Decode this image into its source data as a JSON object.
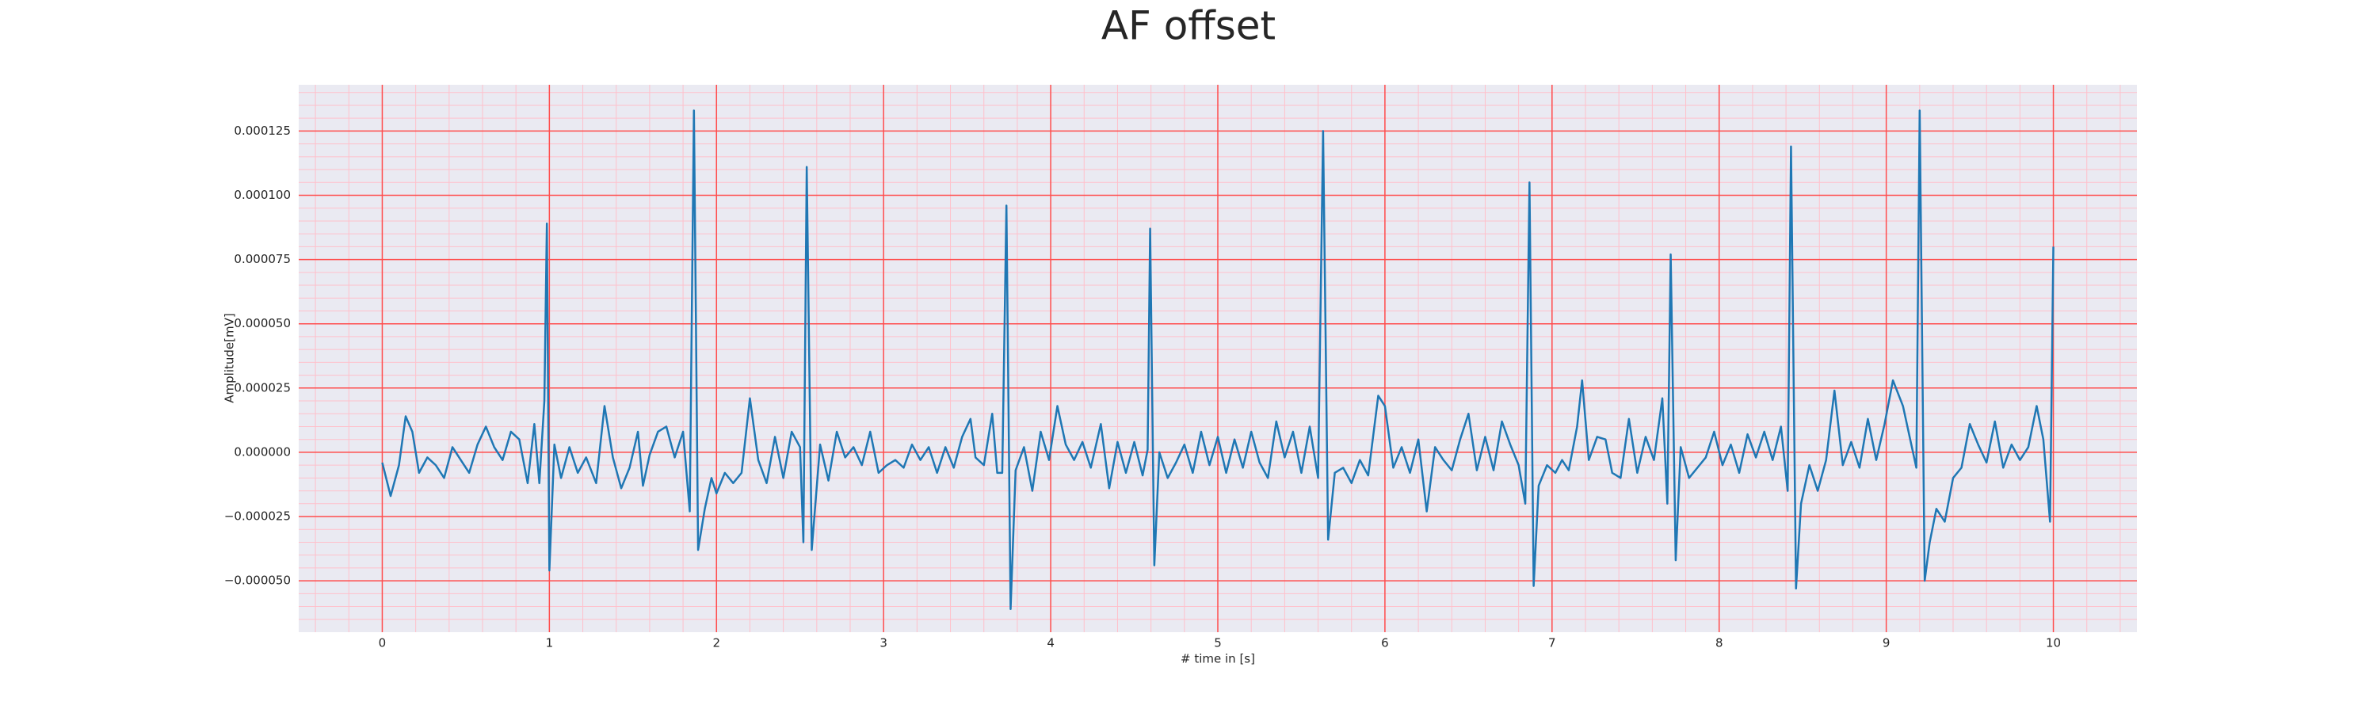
{
  "chart_data": {
    "type": "line",
    "title": "AF offset",
    "x_label": "# time in [s]",
    "y_label": "Amplitude[mV]",
    "color": "#1f77b4",
    "background": "#eaeaf2",
    "grid": true,
    "minor_grid": true,
    "grid_color": "#ff4d4d",
    "minor_grid_color": "#ffc0cb",
    "xlim": [
      -0.5,
      10.5
    ],
    "xticks": [
      0,
      1,
      2,
      3,
      4,
      5,
      6,
      7,
      8,
      9,
      10
    ],
    "ylim": [
      -7e-05,
      0.000143
    ],
    "yticks": [
      {
        "value": -5e-05,
        "label": "−0.000050"
      },
      {
        "value": -2.5e-05,
        "label": "−0.000025"
      },
      {
        "value": 0,
        "label": "0.000000"
      },
      {
        "value": 2.5e-05,
        "label": "0.000025"
      },
      {
        "value": 5e-05,
        "label": "0.000050"
      },
      {
        "value": 7.5e-05,
        "label": "0.000075"
      },
      {
        "value": 0.0001,
        "label": "0.000100"
      },
      {
        "value": 0.000125,
        "label": "0.000125"
      }
    ],
    "x": [
      0.0,
      0.05,
      0.1,
      0.14,
      0.18,
      0.22,
      0.27,
      0.32,
      0.37,
      0.42,
      0.47,
      0.52,
      0.57,
      0.62,
      0.67,
      0.72,
      0.77,
      0.82,
      0.87,
      0.91,
      0.94,
      0.97,
      0.985,
      1.0,
      1.03,
      1.07,
      1.12,
      1.17,
      1.22,
      1.28,
      1.33,
      1.38,
      1.43,
      1.48,
      1.53,
      1.56,
      1.6,
      1.65,
      1.7,
      1.75,
      1.8,
      1.84,
      1.865,
      1.89,
      1.93,
      1.97,
      2.0,
      2.05,
      2.1,
      2.15,
      2.2,
      2.25,
      2.3,
      2.35,
      2.4,
      2.45,
      2.5,
      2.52,
      2.54,
      2.57,
      2.62,
      2.67,
      2.72,
      2.77,
      2.82,
      2.87,
      2.92,
      2.97,
      3.02,
      3.07,
      3.12,
      3.17,
      3.22,
      3.27,
      3.32,
      3.37,
      3.42,
      3.47,
      3.52,
      3.55,
      3.6,
      3.65,
      3.68,
      3.71,
      3.735,
      3.76,
      3.79,
      3.84,
      3.89,
      3.94,
      3.99,
      4.04,
      4.09,
      4.14,
      4.19,
      4.24,
      4.3,
      4.35,
      4.4,
      4.45,
      4.5,
      4.55,
      4.58,
      4.595,
      4.62,
      4.65,
      4.7,
      4.75,
      4.8,
      4.85,
      4.9,
      4.95,
      5.0,
      5.05,
      5.1,
      5.15,
      5.2,
      5.25,
      5.3,
      5.35,
      5.4,
      5.45,
      5.5,
      5.55,
      5.6,
      5.63,
      5.66,
      5.7,
      5.75,
      5.8,
      5.85,
      5.9,
      5.96,
      6.0,
      6.05,
      6.1,
      6.15,
      6.2,
      6.25,
      6.3,
      6.35,
      6.4,
      6.45,
      6.5,
      6.55,
      6.6,
      6.65,
      6.7,
      6.75,
      6.8,
      6.84,
      6.865,
      6.89,
      6.92,
      6.97,
      7.02,
      7.06,
      7.1,
      7.15,
      7.18,
      7.22,
      7.27,
      7.32,
      7.36,
      7.41,
      7.46,
      7.51,
      7.56,
      7.61,
      7.66,
      7.69,
      7.71,
      7.74,
      7.77,
      7.82,
      7.87,
      7.92,
      7.97,
      8.02,
      8.07,
      8.12,
      8.17,
      8.22,
      8.27,
      8.32,
      8.37,
      8.41,
      8.43,
      8.46,
      8.49,
      8.54,
      8.59,
      8.64,
      8.69,
      8.74,
      8.79,
      8.84,
      8.89,
      8.94,
      8.99,
      9.04,
      9.1,
      9.15,
      9.18,
      9.2,
      9.23,
      9.26,
      9.3,
      9.35,
      9.4,
      9.45,
      9.5,
      9.55,
      9.6,
      9.65,
      9.7,
      9.75,
      9.8,
      9.85,
      9.9,
      9.94,
      9.98,
      10.0
    ],
    "values": [
      -4e-06,
      -1.7e-05,
      -5e-06,
      1.4e-05,
      8e-06,
      -8e-06,
      -2e-06,
      -5e-06,
      -1e-05,
      2e-06,
      -3e-06,
      -8e-06,
      3e-06,
      1e-05,
      2e-06,
      -3e-06,
      8e-06,
      5e-06,
      -1.2e-05,
      1.1e-05,
      -1.2e-05,
      2e-05,
      8.9e-05,
      -4.6e-05,
      3e-06,
      -1e-05,
      2e-06,
      -8e-06,
      -2e-06,
      -1.2e-05,
      1.8e-05,
      -2e-06,
      -1.4e-05,
      -6e-06,
      8e-06,
      -1.3e-05,
      -1e-06,
      8e-06,
      1e-05,
      -2e-06,
      8e-06,
      -2.3e-05,
      0.000133,
      -3.8e-05,
      -2.2e-05,
      -1e-05,
      -1.6e-05,
      -8e-06,
      -1.2e-05,
      -8e-06,
      2.1e-05,
      -3e-06,
      -1.2e-05,
      6e-06,
      -1e-05,
      8e-06,
      2e-06,
      -3.5e-05,
      0.000111,
      -3.8e-05,
      3e-06,
      -1.1e-05,
      8e-06,
      -2e-06,
      2e-06,
      -5e-06,
      8e-06,
      -8e-06,
      -5e-06,
      -3e-06,
      -6e-06,
      3e-06,
      -3e-06,
      2e-06,
      -8e-06,
      2e-06,
      -6e-06,
      6e-06,
      1.3e-05,
      -2e-06,
      -5e-06,
      1.5e-05,
      -8e-06,
      -8e-06,
      9.6e-05,
      -6.1e-05,
      -7e-06,
      2e-06,
      -1.5e-05,
      8e-06,
      -3e-06,
      1.8e-05,
      3e-06,
      -3e-06,
      4e-06,
      -6e-06,
      1.1e-05,
      -1.4e-05,
      4e-06,
      -8e-06,
      4e-06,
      -9e-06,
      1e-06,
      8.7e-05,
      -4.4e-05,
      0,
      -1e-05,
      -4e-06,
      3e-06,
      -8e-06,
      8e-06,
      -5e-06,
      6e-06,
      -8e-06,
      5e-06,
      -6e-06,
      8e-06,
      -4e-06,
      -1e-05,
      1.2e-05,
      -2e-06,
      8e-06,
      -8e-06,
      1e-05,
      -1e-05,
      0.000125,
      -3.4e-05,
      -8e-06,
      -6e-06,
      -1.2e-05,
      -3e-06,
      -9e-06,
      2.2e-05,
      1.8e-05,
      -6e-06,
      2e-06,
      -8e-06,
      5e-06,
      -2.3e-05,
      2e-06,
      -3e-06,
      -7e-06,
      5e-06,
      1.5e-05,
      -7e-06,
      6e-06,
      -7e-06,
      1.2e-05,
      3e-06,
      -5e-06,
      -2e-05,
      0.000105,
      -5.2e-05,
      -1.3e-05,
      -5e-06,
      -8e-06,
      -3e-06,
      -7e-06,
      1e-05,
      2.8e-05,
      -3e-06,
      6e-06,
      5e-06,
      -8e-06,
      -1e-05,
      1.3e-05,
      -8e-06,
      6e-06,
      -3e-06,
      2.1e-05,
      -2e-05,
      7.7e-05,
      -4.2e-05,
      2e-06,
      -1e-05,
      -6e-06,
      -2e-06,
      8e-06,
      -5e-06,
      3e-06,
      -8e-06,
      7e-06,
      -2e-06,
      8e-06,
      -3e-06,
      1e-05,
      -1.5e-05,
      0.000119,
      -5.3e-05,
      -2e-05,
      -5e-06,
      -1.5e-05,
      -3e-06,
      2.4e-05,
      -5e-06,
      4e-06,
      -6e-06,
      1.3e-05,
      -3e-06,
      1.1e-05,
      2.8e-05,
      1.8e-05,
      3e-06,
      -6e-06,
      0.000133,
      -5e-05,
      -3.5e-05,
      -2.2e-05,
      -2.7e-05,
      -1e-05,
      -6e-06,
      1.1e-05,
      3e-06,
      -4e-06,
      1.2e-05,
      -6e-06,
      3e-06,
      -3e-06,
      2e-06,
      1.8e-05,
      5e-06,
      -2.7e-05,
      8e-05
    ]
  }
}
